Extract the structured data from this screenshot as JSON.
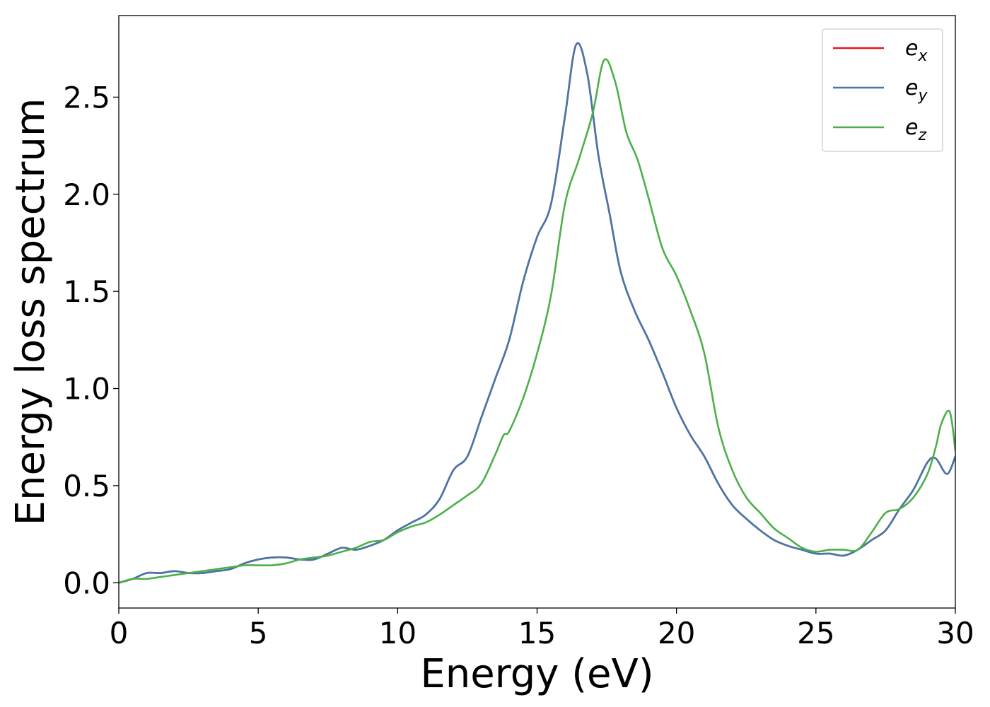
{
  "chart_data": {
    "type": "line",
    "xlabel": "Energy (eV)",
    "ylabel": "Energy loss spectrum",
    "xlim": [
      0,
      30
    ],
    "ylim": [
      -0.13,
      2.92
    ],
    "xticks": [
      0,
      5,
      10,
      15,
      20,
      25,
      30
    ],
    "xtick_labels": [
      "0",
      "5",
      "10",
      "15",
      "20",
      "25",
      "30"
    ],
    "yticks": [
      0.0,
      0.5,
      1.0,
      1.5,
      2.0,
      2.5
    ],
    "ytick_labels": [
      "0.0",
      "0.5",
      "1.0",
      "1.5",
      "2.0",
      "2.5"
    ],
    "grid": false,
    "legend_position": "top-right",
    "series": [
      {
        "name": "e_x",
        "legend_base": "e",
        "legend_sub": "x",
        "color": "#e41a1c",
        "x": [
          0,
          0.5,
          1,
          1.5,
          2,
          2.5,
          3,
          3.5,
          4,
          4.5,
          5,
          5.5,
          6,
          6.5,
          7,
          7.5,
          8,
          8.5,
          9,
          9.5,
          10,
          10.5,
          11,
          11.5,
          12,
          12.5,
          13,
          13.5,
          14,
          14.5,
          15,
          15.5,
          16,
          16.4,
          16.8,
          17.2,
          17.6,
          18,
          18.5,
          19,
          19.5,
          20,
          20.5,
          21,
          21.5,
          22,
          22.5,
          23,
          23.5,
          24,
          24.5,
          25,
          25.5,
          26,
          26.5,
          27,
          27.5,
          28,
          28.5,
          29,
          29.3,
          29.7,
          30
        ],
        "y": [
          0,
          0.02,
          0.05,
          0.05,
          0.06,
          0.05,
          0.05,
          0.06,
          0.07,
          0.1,
          0.12,
          0.13,
          0.13,
          0.12,
          0.12,
          0.15,
          0.18,
          0.17,
          0.19,
          0.22,
          0.27,
          0.31,
          0.35,
          0.43,
          0.58,
          0.65,
          0.85,
          1.05,
          1.25,
          1.55,
          1.78,
          1.95,
          2.4,
          2.77,
          2.62,
          2.2,
          1.9,
          1.6,
          1.4,
          1.25,
          1.08,
          0.9,
          0.76,
          0.65,
          0.51,
          0.4,
          0.33,
          0.27,
          0.22,
          0.19,
          0.17,
          0.15,
          0.15,
          0.14,
          0.17,
          0.22,
          0.27,
          0.38,
          0.48,
          0.62,
          0.64,
          0.56,
          0.65
        ]
      },
      {
        "name": "e_y",
        "legend_base": "e",
        "legend_sub": "y",
        "color": "#4477aa",
        "x": [
          0,
          0.5,
          1,
          1.5,
          2,
          2.5,
          3,
          3.5,
          4,
          4.5,
          5,
          5.5,
          6,
          6.5,
          7,
          7.5,
          8,
          8.5,
          9,
          9.5,
          10,
          10.5,
          11,
          11.5,
          12,
          12.5,
          13,
          13.5,
          14,
          14.5,
          15,
          15.5,
          16,
          16.4,
          16.8,
          17.2,
          17.6,
          18,
          18.5,
          19,
          19.5,
          20,
          20.5,
          21,
          21.5,
          22,
          22.5,
          23,
          23.5,
          24,
          24.5,
          25,
          25.5,
          26,
          26.5,
          27,
          27.5,
          28,
          28.5,
          29,
          29.3,
          29.7,
          30
        ],
        "y": [
          0,
          0.02,
          0.05,
          0.05,
          0.06,
          0.05,
          0.05,
          0.06,
          0.07,
          0.1,
          0.12,
          0.13,
          0.13,
          0.12,
          0.12,
          0.15,
          0.18,
          0.17,
          0.19,
          0.22,
          0.27,
          0.31,
          0.35,
          0.43,
          0.58,
          0.65,
          0.85,
          1.05,
          1.25,
          1.55,
          1.78,
          1.95,
          2.4,
          2.77,
          2.62,
          2.2,
          1.9,
          1.6,
          1.4,
          1.25,
          1.08,
          0.9,
          0.76,
          0.65,
          0.51,
          0.4,
          0.33,
          0.27,
          0.22,
          0.19,
          0.17,
          0.15,
          0.15,
          0.14,
          0.17,
          0.22,
          0.27,
          0.38,
          0.48,
          0.62,
          0.64,
          0.56,
          0.65
        ]
      },
      {
        "name": "e_z",
        "legend_base": "e",
        "legend_sub": "z",
        "color": "#4daf4a",
        "x": [
          0,
          0.5,
          1,
          1.5,
          2,
          2.5,
          3,
          3.5,
          4,
          4.5,
          5,
          5.5,
          6,
          6.5,
          7,
          7.5,
          8,
          8.5,
          9,
          9.5,
          10,
          10.5,
          11,
          11.5,
          12,
          12.5,
          13,
          13.5,
          13.8,
          14,
          14.5,
          15,
          15.5,
          16,
          16.5,
          17,
          17.4,
          17.8,
          18.2,
          18.6,
          19,
          19.5,
          20,
          20.5,
          21,
          21.5,
          22,
          22.5,
          23,
          23.5,
          24,
          24.5,
          25,
          25.5,
          26,
          26.5,
          27,
          27.5,
          28,
          28.5,
          29,
          29.3,
          29.5,
          29.8,
          30
        ],
        "y": [
          0,
          0.02,
          0.02,
          0.03,
          0.04,
          0.05,
          0.06,
          0.07,
          0.08,
          0.09,
          0.09,
          0.09,
          0.1,
          0.12,
          0.13,
          0.14,
          0.16,
          0.18,
          0.21,
          0.22,
          0.26,
          0.29,
          0.31,
          0.35,
          0.4,
          0.45,
          0.51,
          0.66,
          0.76,
          0.78,
          0.95,
          1.18,
          1.48,
          1.95,
          2.18,
          2.42,
          2.69,
          2.58,
          2.32,
          2.18,
          1.98,
          1.72,
          1.58,
          1.4,
          1.18,
          0.8,
          0.58,
          0.44,
          0.36,
          0.28,
          0.23,
          0.18,
          0.16,
          0.17,
          0.17,
          0.17,
          0.26,
          0.36,
          0.38,
          0.44,
          0.56,
          0.7,
          0.82,
          0.88,
          0.68
        ]
      }
    ]
  }
}
